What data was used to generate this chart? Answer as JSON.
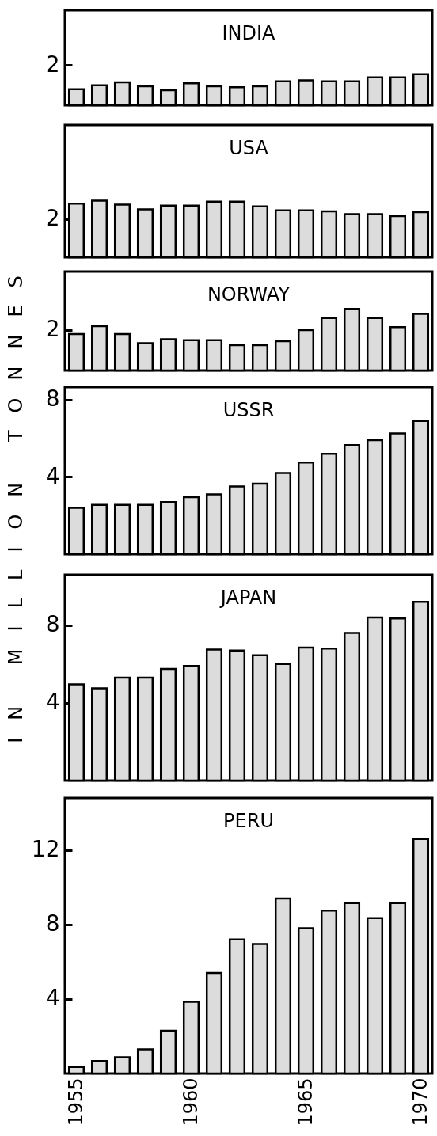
{
  "chart_data": [
    {
      "type": "bar",
      "title": "INDIA",
      "categories": [
        "1955",
        null,
        null,
        null,
        null,
        "1960",
        null,
        null,
        null,
        null,
        "1965",
        null,
        null,
        null,
        null,
        "1970"
      ],
      "values": [
        0.8,
        1.0,
        1.15,
        0.95,
        0.75,
        1.1,
        0.95,
        0.9,
        0.95,
        1.2,
        1.25,
        1.2,
        1.2,
        1.4,
        1.4,
        1.55
      ],
      "color": "#dcdcdc",
      "ylim": [
        0,
        4.75
      ],
      "yticks": [
        2
      ],
      "tick_labels": "y"
    },
    {
      "type": "bar",
      "title": "USA",
      "categories": [
        "1955",
        null,
        null,
        null,
        null,
        "1960",
        null,
        null,
        null,
        null,
        "1965",
        null,
        null,
        null,
        null,
        "1970"
      ],
      "values": [
        2.8,
        2.95,
        2.75,
        2.5,
        2.7,
        2.7,
        2.9,
        2.9,
        2.65,
        2.45,
        2.45,
        2.4,
        2.25,
        2.25,
        2.15,
        2.35
      ],
      "color": "#dcdcdc",
      "ylim": [
        0,
        6.9
      ],
      "yticks": [
        2
      ],
      "tick_labels": "y"
    },
    {
      "type": "bar",
      "title": "NORWAY",
      "categories": [
        "1955",
        null,
        null,
        null,
        null,
        "1960",
        null,
        null,
        null,
        null,
        "1965",
        null,
        null,
        null,
        null,
        "1970"
      ],
      "values": [
        1.8,
        2.2,
        1.8,
        1.35,
        1.55,
        1.5,
        1.5,
        1.25,
        1.25,
        1.45,
        2.0,
        2.6,
        3.05,
        2.6,
        2.15,
        2.8
      ],
      "color": "#dcdcdc",
      "ylim": [
        0,
        4.9
      ],
      "yticks": [
        2
      ],
      "tick_labels": "y"
    },
    {
      "type": "bar",
      "title": "USSR",
      "ylabel": "IN MILLION TONNES",
      "categories": [
        "1955",
        null,
        null,
        null,
        null,
        "1960",
        null,
        null,
        null,
        null,
        "1965",
        null,
        null,
        null,
        null,
        "1970"
      ],
      "values": [
        2.4,
        2.55,
        2.55,
        2.55,
        2.7,
        2.95,
        3.1,
        3.5,
        3.65,
        4.2,
        4.75,
        5.2,
        5.65,
        5.9,
        6.25,
        6.9
      ],
      "color": "#dcdcdc",
      "ylim": [
        0,
        8.65
      ],
      "yticks": [
        4,
        8
      ],
      "tick_labels": "y"
    },
    {
      "type": "bar",
      "title": "JAPAN",
      "categories": [
        "1955",
        null,
        null,
        null,
        null,
        "1960",
        null,
        null,
        null,
        null,
        "1965",
        null,
        null,
        null,
        null,
        "1970"
      ],
      "values": [
        4.95,
        4.75,
        5.3,
        5.3,
        5.75,
        5.9,
        6.75,
        6.7,
        6.45,
        6.0,
        6.85,
        6.8,
        7.6,
        8.4,
        8.35,
        9.2
      ],
      "color": "#dcdcdc",
      "ylim": [
        0,
        10.6
      ],
      "yticks": [
        4,
        8
      ],
      "tick_labels": "y"
    },
    {
      "type": "bar",
      "title": "PERU",
      "categories": [
        "1955",
        null,
        null,
        null,
        null,
        "1960",
        null,
        null,
        null,
        null,
        "1965",
        null,
        null,
        null,
        null,
        "1970"
      ],
      "values": [
        0.35,
        0.67,
        0.87,
        1.3,
        2.3,
        3.85,
        5.4,
        7.2,
        6.95,
        9.4,
        7.8,
        8.75,
        9.15,
        8.35,
        9.15,
        12.6
      ],
      "color": "#dcdcdc",
      "ylim": [
        0,
        14.8
      ],
      "yticks": [
        4,
        8,
        12
      ]
    }
  ]
}
